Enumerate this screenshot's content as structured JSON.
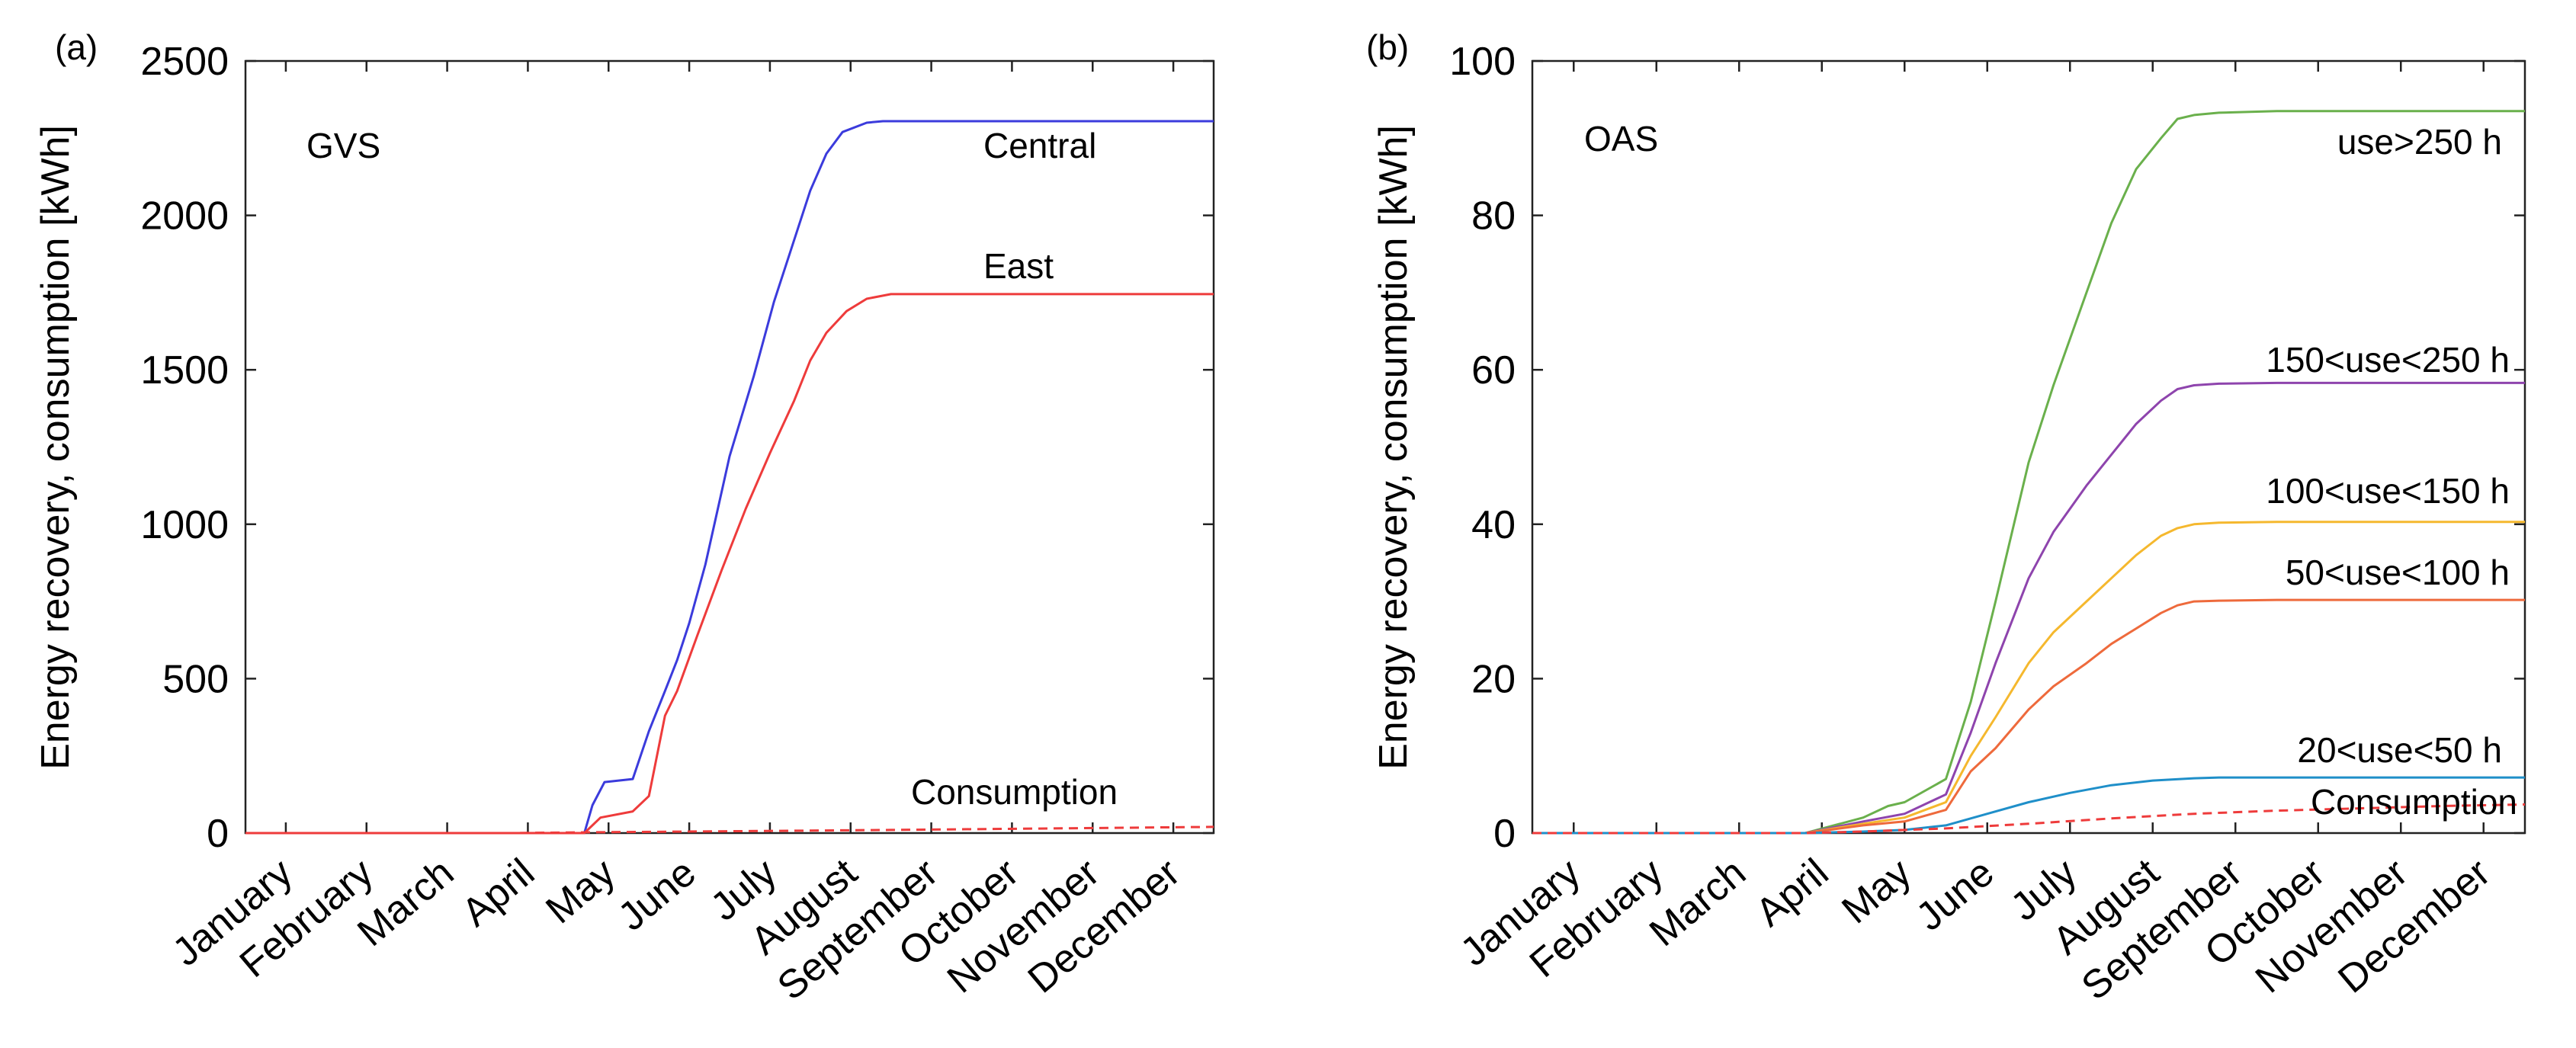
{
  "chart_data": [
    {
      "type": "line",
      "panel_label": "(a)",
      "title": "GVS",
      "xlabel": "",
      "ylabel": "Energy recovery, consumption [kWh]",
      "x_categories": [
        "January",
        "February",
        "March",
        "April",
        "May",
        "June",
        "July",
        "August",
        "September",
        "October",
        "November",
        "December"
      ],
      "x_unit": "month (1 = start of January, 13 = end of December)",
      "xlim": [
        1,
        13
      ],
      "ylim": [
        0,
        2500
      ],
      "yticks": [
        0,
        500,
        1000,
        1500,
        2000,
        2500
      ],
      "series": [
        {
          "name": "Central",
          "color": "#3b3bdc",
          "dash": "solid",
          "x": [
            1,
            4.3,
            5.2,
            5.3,
            5.45,
            5.8,
            6.0,
            6.2,
            6.35,
            6.5,
            6.7,
            7.0,
            7.3,
            7.55,
            7.75,
            8.0,
            8.2,
            8.4,
            8.7,
            8.9,
            9.1,
            9.3,
            10.0,
            13
          ],
          "y": [
            0,
            0,
            0,
            90,
            165,
            175,
            330,
            460,
            560,
            680,
            870,
            1220,
            1480,
            1720,
            1880,
            2080,
            2200,
            2270,
            2300,
            2305,
            2305,
            2305,
            2305,
            2305
          ]
        },
        {
          "name": "East",
          "color": "#ee3b3b",
          "dash": "solid",
          "x": [
            1,
            4.3,
            5.2,
            5.4,
            5.8,
            6.0,
            6.2,
            6.35,
            6.6,
            6.9,
            7.2,
            7.5,
            7.8,
            8.0,
            8.2,
            8.45,
            8.7,
            9.0,
            9.3,
            10.0,
            13
          ],
          "y": [
            0,
            0,
            0,
            50,
            70,
            120,
            380,
            460,
            640,
            850,
            1050,
            1230,
            1400,
            1530,
            1620,
            1690,
            1730,
            1745,
            1745,
            1745,
            1745
          ]
        },
        {
          "name": "Consumption",
          "color": "#ee3b3b",
          "dash": "dashed",
          "x": [
            1,
            4.3,
            5.0,
            7.0,
            9.0,
            11.0,
            13
          ],
          "y": [
            0,
            0,
            2,
            6,
            10,
            15,
            20
          ]
        }
      ],
      "annotations": [
        "Central",
        "East",
        "Consumption"
      ]
    },
    {
      "type": "line",
      "panel_label": "(b)",
      "title": "OAS",
      "xlabel": "",
      "ylabel": "Energy recovery, consumption [kWh]",
      "x_categories": [
        "January",
        "February",
        "March",
        "April",
        "May",
        "June",
        "July",
        "August",
        "September",
        "October",
        "November",
        "December"
      ],
      "x_unit": "month (1 = start of January, 13 = end of December)",
      "xlim": [
        1,
        13
      ],
      "ylim": [
        0,
        100
      ],
      "yticks": [
        0,
        20,
        40,
        60,
        80,
        100
      ],
      "series": [
        {
          "name": "use>250 h",
          "color": "#6ab04c",
          "dash": "solid",
          "x": [
            1,
            4.3,
            5.0,
            5.3,
            5.5,
            6.0,
            6.3,
            6.6,
            7.0,
            7.3,
            7.7,
            8.0,
            8.3,
            8.6,
            8.8,
            9.0,
            9.3,
            10.0,
            13
          ],
          "y": [
            0,
            0,
            2,
            3.5,
            4,
            7,
            17,
            30,
            48,
            58,
            70,
            79,
            86,
            90,
            92.5,
            93,
            93.3,
            93.5,
            93.5
          ]
        },
        {
          "name": "150<use<250 h",
          "color": "#8e44ad",
          "dash": "solid",
          "x": [
            1,
            4.3,
            5.0,
            5.5,
            6.0,
            6.3,
            6.6,
            7.0,
            7.3,
            7.7,
            8.0,
            8.3,
            8.6,
            8.8,
            9.0,
            9.3,
            10.0,
            13
          ],
          "y": [
            0,
            0,
            1.5,
            2.5,
            5,
            13,
            22,
            33,
            39,
            45,
            49,
            53,
            56,
            57.5,
            58,
            58.2,
            58.3,
            58.3
          ]
        },
        {
          "name": "100<use<150 h",
          "color": "#f5b82e",
          "dash": "solid",
          "x": [
            1,
            4.3,
            5.0,
            5.5,
            6.0,
            6.3,
            6.6,
            7.0,
            7.3,
            7.7,
            8.0,
            8.3,
            8.6,
            8.8,
            9.0,
            9.3,
            10.0,
            13
          ],
          "y": [
            0,
            0,
            1.2,
            2,
            4,
            10,
            15,
            22,
            26,
            30,
            33,
            36,
            38.5,
            39.5,
            40,
            40.2,
            40.3,
            40.3
          ]
        },
        {
          "name": "50<use<100 h",
          "color": "#ee6a3c",
          "dash": "solid",
          "x": [
            1,
            4.3,
            5.0,
            5.5,
            6.0,
            6.3,
            6.6,
            7.0,
            7.3,
            7.7,
            8.0,
            8.3,
            8.6,
            8.8,
            9.0,
            9.3,
            10.0,
            13
          ],
          "y": [
            0,
            0,
            1,
            1.5,
            3,
            8,
            11,
            16,
            19,
            22,
            24.5,
            26.5,
            28.5,
            29.5,
            30,
            30.1,
            30.2,
            30.2
          ]
        },
        {
          "name": "20<use<50 h",
          "color": "#1f8fc9",
          "dash": "solid",
          "x": [
            1,
            4.3,
            5.0,
            5.5,
            6.0,
            6.5,
            7.0,
            7.5,
            8.0,
            8.5,
            9.0,
            9.3,
            10.0,
            13
          ],
          "y": [
            0,
            0,
            0.2,
            0.4,
            1,
            2.5,
            4,
            5.2,
            6.2,
            6.8,
            7.1,
            7.2,
            7.2,
            7.2
          ]
        },
        {
          "name": "Consumption",
          "color": "#ee3b3b",
          "dash": "dashed",
          "x": [
            1,
            4.3,
            5.0,
            6.0,
            7.0,
            8.0,
            9.0,
            10.0,
            11.0,
            12.0,
            13
          ],
          "y": [
            0,
            0,
            0.2,
            0.6,
            1.2,
            1.9,
            2.5,
            2.9,
            3.2,
            3.5,
            3.7
          ]
        }
      ],
      "annotations": [
        "use>250 h",
        "150<use<250 h",
        "100<use<150 h",
        "50<use<100 h",
        "20<use<50 h",
        "Consumption"
      ]
    }
  ]
}
